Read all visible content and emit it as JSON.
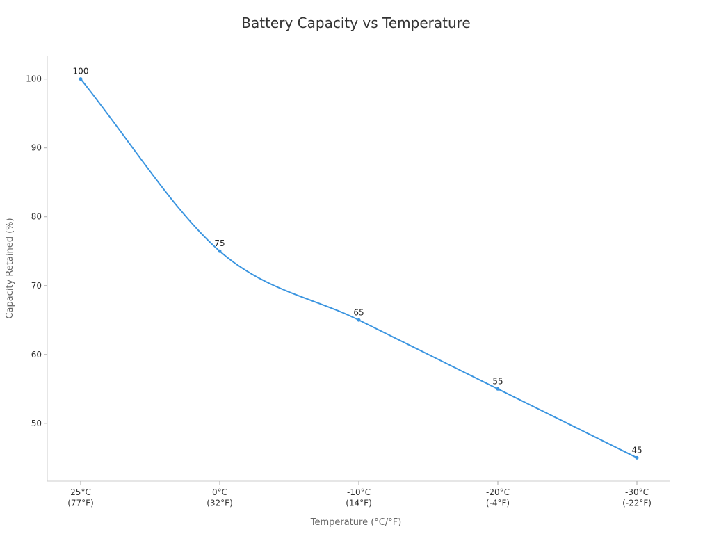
{
  "chart_data": {
    "type": "line",
    "title": "Battery Capacity vs Temperature",
    "xlabel": "Temperature (°C/°F)",
    "ylabel": "Capacity Retained (%)",
    "categories": [
      [
        "25°C",
        "(77°F)"
      ],
      [
        "0°C",
        "(32°F)"
      ],
      [
        "-10°C",
        "(14°F)"
      ],
      [
        "-20°C",
        "(-4°F)"
      ],
      [
        "-30°C",
        "(-22°F)"
      ]
    ],
    "series": [
      {
        "values": [
          100,
          75,
          65,
          55,
          45
        ]
      }
    ],
    "yticks": [
      50,
      60,
      70,
      80,
      90,
      100
    ],
    "ylim": [
      41.6,
      103.4
    ],
    "grid": false,
    "data_labels": true,
    "smooth": true,
    "colors": {
      "line": "#3b95e0",
      "marker": "#3b95e0"
    }
  }
}
